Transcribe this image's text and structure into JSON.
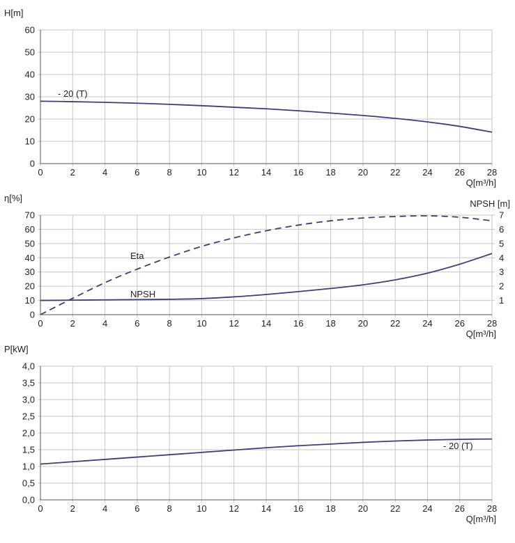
{
  "chart_data": [
    {
      "type": "line",
      "ylabel": "H[m]",
      "xlabel": "Q[m³/h]",
      "xlim": [
        0,
        28
      ],
      "ylim": [
        0,
        60
      ],
      "xticks": [
        0,
        2,
        4,
        6,
        8,
        10,
        12,
        14,
        16,
        18,
        20,
        22,
        24,
        26,
        28
      ],
      "yticks": [
        0,
        10,
        20,
        30,
        40,
        50,
        60
      ],
      "grid": true,
      "series": [
        {
          "name": "- 20 (T)",
          "color": "#3a3f78",
          "style": "solid",
          "x": [
            0,
            2,
            4,
            6,
            8,
            10,
            12,
            14,
            16,
            18,
            20,
            22,
            24,
            26,
            28
          ],
          "y": [
            28,
            27.8,
            27.5,
            27.1,
            26.6,
            26.0,
            25.3,
            24.6,
            23.7,
            22.7,
            21.6,
            20.3,
            18.7,
            16.7,
            14.1
          ]
        }
      ]
    },
    {
      "type": "line",
      "ylabel": "η[%]",
      "ylabel_right": "NPSH [m]",
      "xlabel": "Q[m³/h]",
      "xlim": [
        0,
        28
      ],
      "ylim": [
        0,
        70
      ],
      "ylim_right": [
        0,
        7
      ],
      "xticks": [
        0,
        2,
        4,
        6,
        8,
        10,
        12,
        14,
        16,
        18,
        20,
        22,
        24,
        26,
        28
      ],
      "yticks": [
        0,
        10,
        20,
        30,
        40,
        50,
        60,
        70
      ],
      "yticks_right": [
        1,
        2,
        3,
        4,
        5,
        6,
        7
      ],
      "grid": true,
      "series": [
        {
          "name": "Eta",
          "axis": "left",
          "color": "#3a3f78",
          "style": "dashed",
          "x": [
            0,
            2,
            4,
            6,
            8,
            10,
            12,
            14,
            16,
            18,
            20,
            22,
            24,
            26,
            28
          ],
          "y": [
            0,
            11.5,
            22.5,
            32,
            40.5,
            48,
            54,
            59,
            63,
            66,
            68,
            69,
            69.5,
            68.5,
            66
          ]
        },
        {
          "name": "NPSH",
          "axis": "right",
          "color": "#3a3f78",
          "style": "solid",
          "x": [
            0,
            2,
            4,
            6,
            8,
            10,
            12,
            14,
            16,
            18,
            20,
            22,
            24,
            26,
            28
          ],
          "y": [
            1.0,
            1.02,
            1.04,
            1.06,
            1.08,
            1.13,
            1.25,
            1.42,
            1.62,
            1.84,
            2.1,
            2.45,
            2.92,
            3.55,
            4.3
          ]
        }
      ]
    },
    {
      "type": "line",
      "ylabel": "P[kW]",
      "xlabel": "Q[m³/h]",
      "xlim": [
        0,
        28
      ],
      "ylim": [
        0,
        4.0
      ],
      "xticks": [
        0,
        2,
        4,
        6,
        8,
        10,
        12,
        14,
        16,
        18,
        20,
        22,
        24,
        26,
        28
      ],
      "yticks": [
        "0,0",
        "0,5",
        "1,0",
        "1,5",
        "2,0",
        "2,5",
        "3,0",
        "3,5",
        "4,0"
      ],
      "grid": true,
      "series": [
        {
          "name": "- 20 (T)",
          "color": "#3a3f78",
          "style": "solid",
          "x": [
            0,
            2,
            4,
            6,
            8,
            10,
            12,
            14,
            16,
            18,
            20,
            22,
            24,
            26,
            28
          ],
          "y": [
            1.07,
            1.14,
            1.21,
            1.28,
            1.35,
            1.42,
            1.49,
            1.56,
            1.62,
            1.67,
            1.72,
            1.76,
            1.79,
            1.81,
            1.82
          ]
        }
      ]
    }
  ]
}
